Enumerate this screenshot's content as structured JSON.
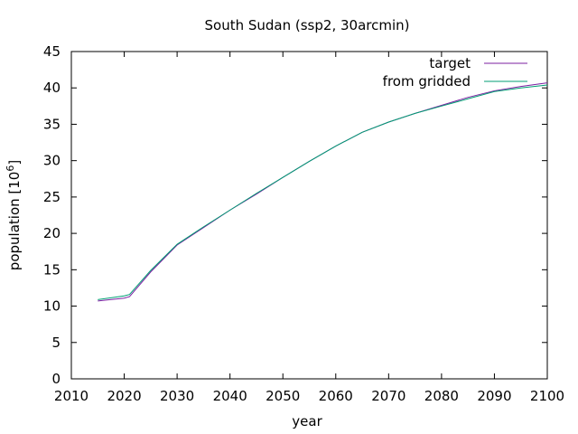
{
  "chart_data": {
    "type": "line",
    "title": "South Sudan (ssp2, 30arcmin)",
    "xlabel": "year",
    "ylabel": "population [10",
    "ylabel_sup": "6",
    "ylabel_end": "]",
    "xlim": [
      2010,
      2100
    ],
    "ylim": [
      0,
      45
    ],
    "xticks": [
      2010,
      2020,
      2030,
      2040,
      2050,
      2060,
      2070,
      2080,
      2090,
      2100
    ],
    "yticks": [
      0,
      5,
      10,
      15,
      20,
      25,
      30,
      35,
      40,
      45
    ],
    "grid": false,
    "legend_position": "top-right",
    "series": [
      {
        "name": "target",
        "color": "#7b1fa2",
        "x": [
          2015,
          2020,
          2021,
          2025,
          2030,
          2035,
          2040,
          2045,
          2050,
          2055,
          2060,
          2065,
          2070,
          2075,
          2080,
          2085,
          2090,
          2095,
          2100
        ],
        "y": [
          10.7,
          11.1,
          11.3,
          14.7,
          18.4,
          20.8,
          23.2,
          25.4,
          27.7,
          29.9,
          32.0,
          33.9,
          35.3,
          36.5,
          37.6,
          38.7,
          39.6,
          40.2,
          40.7
        ]
      },
      {
        "name": "from gridded",
        "color": "#009e73",
        "x": [
          2015,
          2020,
          2021,
          2025,
          2030,
          2035,
          2040,
          2045,
          2050,
          2055,
          2060,
          2065,
          2070,
          2075,
          2080,
          2085,
          2090,
          2095,
          2100
        ],
        "y": [
          10.9,
          11.4,
          11.6,
          14.9,
          18.5,
          20.9,
          23.2,
          25.5,
          27.7,
          29.9,
          32.0,
          33.9,
          35.3,
          36.5,
          37.5,
          38.5,
          39.5,
          40.0,
          40.4
        ]
      }
    ]
  }
}
